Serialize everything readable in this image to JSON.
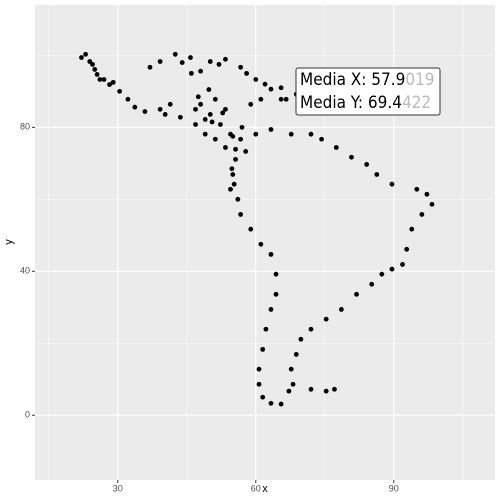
{
  "chart_data": {
    "type": "scatter",
    "x_label": "x",
    "y_label": "y",
    "xlim": [
      12,
      112
    ],
    "ylim": [
      -18,
      114
    ],
    "xticks": [
      30,
      60,
      90
    ],
    "yticks": [
      0,
      40,
      80
    ],
    "xminor": [
      15,
      45,
      75,
      105
    ],
    "yminor": [
      20,
      60,
      100
    ],
    "grid": true,
    "color": "#000000",
    "tooltip": [
      {
        "main": "Media X: 57.9",
        "faded": "019"
      },
      {
        "main": "Media Y: 69.4",
        "faded": "422"
      }
    ],
    "x": [
      22.1,
      23.9,
      25.0,
      26.1,
      28.2,
      30.4,
      32.2,
      33.7,
      35.9,
      39.2,
      41.4,
      23.0,
      24.5,
      25.5,
      27.0,
      29.0,
      37.0,
      39.2,
      42.5,
      45.8,
      48.0,
      50.1,
      53.4,
      56.7,
      60.0,
      63.3,
      66.6,
      68.8,
      44.0,
      46.0,
      52.0,
      58.0,
      62.0,
      65.5,
      40.3,
      43.6,
      46.9,
      49.0,
      51.2,
      53.4,
      55.6,
      57.8,
      55.6,
      55.0,
      54.5,
      56.1,
      55.3,
      54.8,
      60.0,
      63.3,
      67.7,
      72.0,
      74.3,
      77.5,
      80.8,
      84.1,
      86.3,
      89.6,
      95.0,
      97.2,
      98.3,
      96.1,
      93.9,
      92.8,
      91.9,
      89.6,
      87.4,
      85.2,
      81.9,
      78.6,
      75.3,
      72.0,
      69.8,
      68.8,
      67.7,
      68.1,
      67.2,
      56.7,
      58.9,
      61.1,
      63.3,
      64.4,
      64.4,
      63.3,
      62.2,
      61.5,
      60.7,
      60.7,
      61.5,
      63.3,
      65.5,
      72.0,
      75.3,
      77.1,
      48.0,
      50.1,
      52.3,
      54.5,
      51.2,
      49.0,
      53.4,
      56.7,
      58.9,
      61.1,
      65.5,
      46.9,
      50.5,
      52.8,
      55.0,
      57.0,
      47.5,
      49.8
    ],
    "y": [
      99.4,
      98.3,
      96.1,
      93.3,
      91.9,
      90.0,
      87.8,
      85.6,
      84.4,
      85.0,
      86.4,
      100.3,
      97.5,
      94.7,
      93.3,
      92.5,
      96.7,
      98.3,
      100.3,
      99.4,
      95.6,
      98.3,
      98.9,
      96.7,
      93.3,
      90.6,
      87.8,
      89.2,
      98.0,
      95.0,
      97.5,
      95.0,
      92.0,
      91.0,
      83.6,
      82.8,
      80.8,
      78.1,
      76.7,
      74.4,
      73.9,
      73.3,
      71.1,
      66.9,
      62.8,
      60.0,
      64.2,
      68.5,
      78.1,
      79.4,
      78.1,
      78.1,
      76.7,
      74.4,
      71.7,
      69.7,
      66.9,
      64.2,
      62.8,
      61.4,
      58.6,
      55.8,
      51.7,
      46.1,
      41.9,
      40.6,
      39.2,
      36.4,
      33.6,
      29.4,
      26.7,
      23.9,
      21.1,
      16.9,
      12.8,
      8.6,
      6.7,
      55.8,
      51.7,
      47.5,
      44.7,
      39.2,
      33.6,
      29.4,
      23.9,
      18.3,
      12.8,
      8.6,
      5.0,
      3.3,
      3.1,
      7.2,
      6.7,
      7.2,
      86.4,
      83.6,
      80.8,
      78.1,
      87.8,
      82.2,
      85.0,
      76.7,
      86.4,
      87.8,
      87.8,
      85.0,
      81.5,
      84.0,
      77.5,
      80.0,
      88.5,
      90.5
    ]
  }
}
